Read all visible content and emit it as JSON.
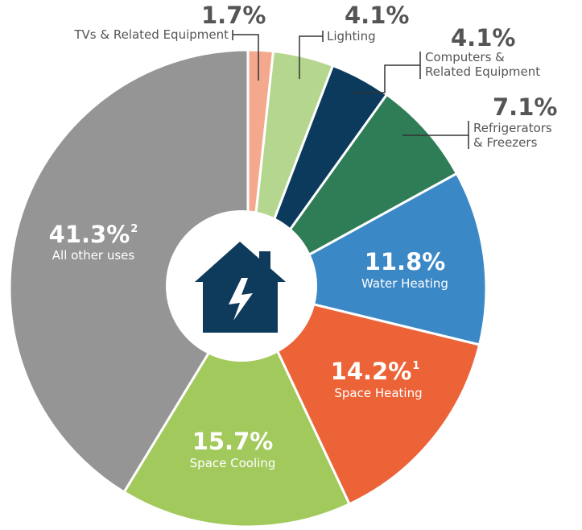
{
  "chart_data": {
    "type": "pie",
    "categories": [
      "TVs & Related Equipment",
      "Lighting",
      "Computers &\nRelated Equipment",
      "Refrigerators\n& Freezers",
      "Water Heating",
      "Space Heating",
      "Space Cooling",
      "All other uses"
    ],
    "values": [
      1.7,
      4.1,
      4.1,
      7.1,
      11.8,
      14.2,
      15.7,
      41.3
    ],
    "value_labels": [
      "1.7%",
      "4.1%",
      "4.1%",
      "7.1%",
      "11.8%",
      "14.2%",
      "15.7%",
      "41.3%"
    ],
    "footnote_marks": [
      null,
      null,
      null,
      null,
      null,
      "1",
      null,
      "2"
    ],
    "colors": [
      "#f4a98f",
      "#b5d68e",
      "#0b3a5c",
      "#2f7d57",
      "#3b88c6",
      "#ec6338",
      "#a2c95c",
      "#959595"
    ]
  }
}
